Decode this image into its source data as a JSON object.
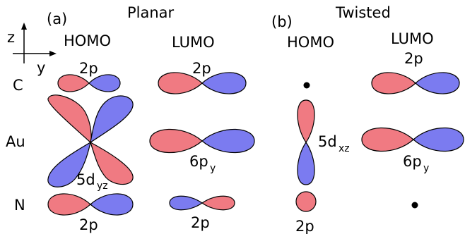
{
  "colors": {
    "positive": "#f07a82",
    "negative": "#7b7bf0"
  },
  "axes": {
    "z": "z",
    "y": "y"
  },
  "panels": {
    "a": {
      "tag": "(a)",
      "title": "Planar",
      "homo": "HOMO",
      "lumo": "LUMO"
    },
    "b": {
      "tag": "(b)",
      "title": "Twisted",
      "homo": "HOMO",
      "lumo": "LUMO"
    }
  },
  "rows": {
    "c": "C",
    "au": "Au",
    "n": "N"
  },
  "orbitals": {
    "a_homo_c": "2p",
    "a_homo_au": {
      "main": "5d",
      "sub": "yz"
    },
    "a_homo_n": "2p",
    "a_lumo_c": "2p",
    "a_lumo_au": {
      "main": "6p",
      "sub": "y"
    },
    "a_lumo_n": "2p",
    "b_homo_au": {
      "main": "5d",
      "sub": "xz"
    },
    "b_homo_n": "2p",
    "b_lumo_c": "2p",
    "b_lumo_au": {
      "main": "6p",
      "sub": "y"
    }
  }
}
